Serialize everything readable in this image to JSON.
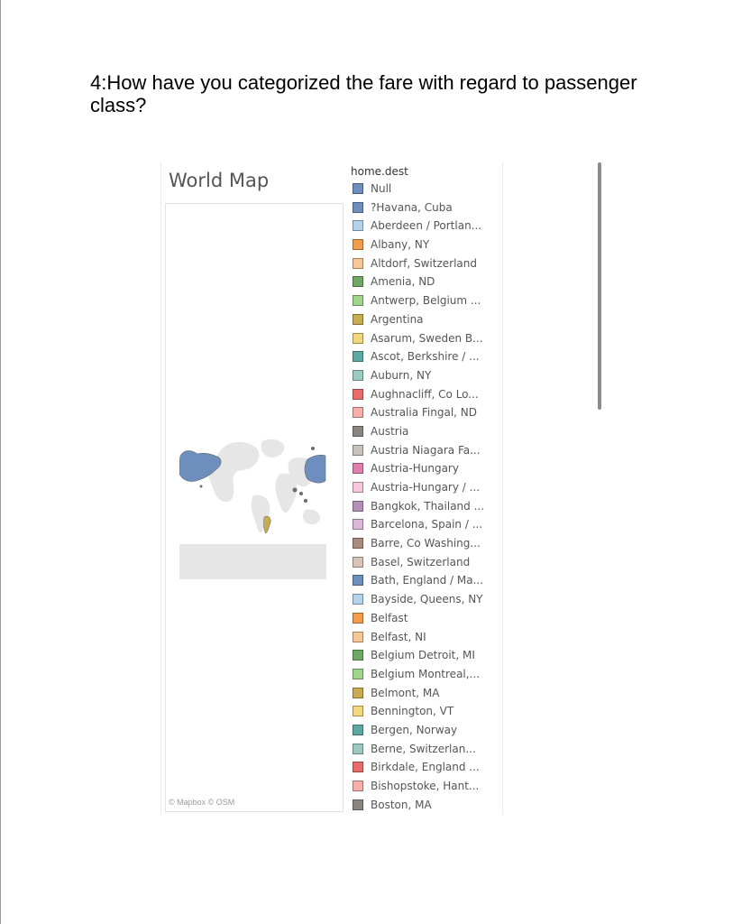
{
  "question": "4:How have you categorized the fare with regard to passenger class?",
  "map": {
    "title": "World Map",
    "attribution": "© Mapbox  © OSM",
    "highlight_colors": {
      "Russia": "#6e8fbd",
      "Argentina": "#c7ad50",
      "land": "#e6e6e6"
    }
  },
  "legend": {
    "title": "home.dest",
    "items": [
      {
        "label": "Null",
        "color": "#6e8fbd"
      },
      {
        "label": "?Havana, Cuba",
        "color": "#6e8fbd"
      },
      {
        "label": "Aberdeen / Portlan...",
        "color": "#b3d3ec"
      },
      {
        "label": "Albany, NY",
        "color": "#f39c4b"
      },
      {
        "label": "Altdorf, Switzerland",
        "color": "#f7c796"
      },
      {
        "label": "Amenia, ND",
        "color": "#6ea864"
      },
      {
        "label": "Antwerp, Belgium ...",
        "color": "#9fd68b"
      },
      {
        "label": "Argentina",
        "color": "#c7ad50"
      },
      {
        "label": "Asarum, Sweden B...",
        "color": "#f3d77e"
      },
      {
        "label": "Ascot, Berkshire / ...",
        "color": "#5fa9a4"
      },
      {
        "label": "Auburn, NY",
        "color": "#9dc9c3"
      },
      {
        "label": "Aughnacliff, Co Lo...",
        "color": "#e86c6c"
      },
      {
        "label": "Australia Fingal, ND",
        "color": "#f9b0ab"
      },
      {
        "label": "Austria",
        "color": "#8b8580"
      },
      {
        "label": "Austria Niagara Fa...",
        "color": "#c9c2ba"
      },
      {
        "label": "Austria-Hungary",
        "color": "#dd80ad"
      },
      {
        "label": "Austria-Hungary / ...",
        "color": "#f6c6dc"
      },
      {
        "label": "Bangkok, Thailand ...",
        "color": "#b68fb6"
      },
      {
        "label": "Barcelona, Spain / ...",
        "color": "#dbb7d8"
      },
      {
        "label": "Barre, Co Washing...",
        "color": "#a88b7e"
      },
      {
        "label": "Basel, Switzerland",
        "color": "#d9c2b6"
      },
      {
        "label": "Bath, England / Ma...",
        "color": "#6e8fbd"
      },
      {
        "label": "Bayside, Queens, NY",
        "color": "#b3d3ec"
      },
      {
        "label": "Belfast",
        "color": "#f39c4b"
      },
      {
        "label": "Belfast, NI",
        "color": "#f7c796"
      },
      {
        "label": "Belgium Detroit, MI",
        "color": "#6ea864"
      },
      {
        "label": "Belgium Montreal,...",
        "color": "#9fd68b"
      },
      {
        "label": "Belmont, MA",
        "color": "#c7ad50"
      },
      {
        "label": "Bennington, VT",
        "color": "#f3d77e"
      },
      {
        "label": "Bergen, Norway",
        "color": "#5fa9a4"
      },
      {
        "label": "Berne, Switzerlan...",
        "color": "#9dc9c3"
      },
      {
        "label": "Birkdale, England ...",
        "color": "#e86c6c"
      },
      {
        "label": "Bishopstoke, Hant...",
        "color": "#f9b0ab"
      },
      {
        "label": "Boston, MA",
        "color": "#8b8580"
      }
    ]
  }
}
